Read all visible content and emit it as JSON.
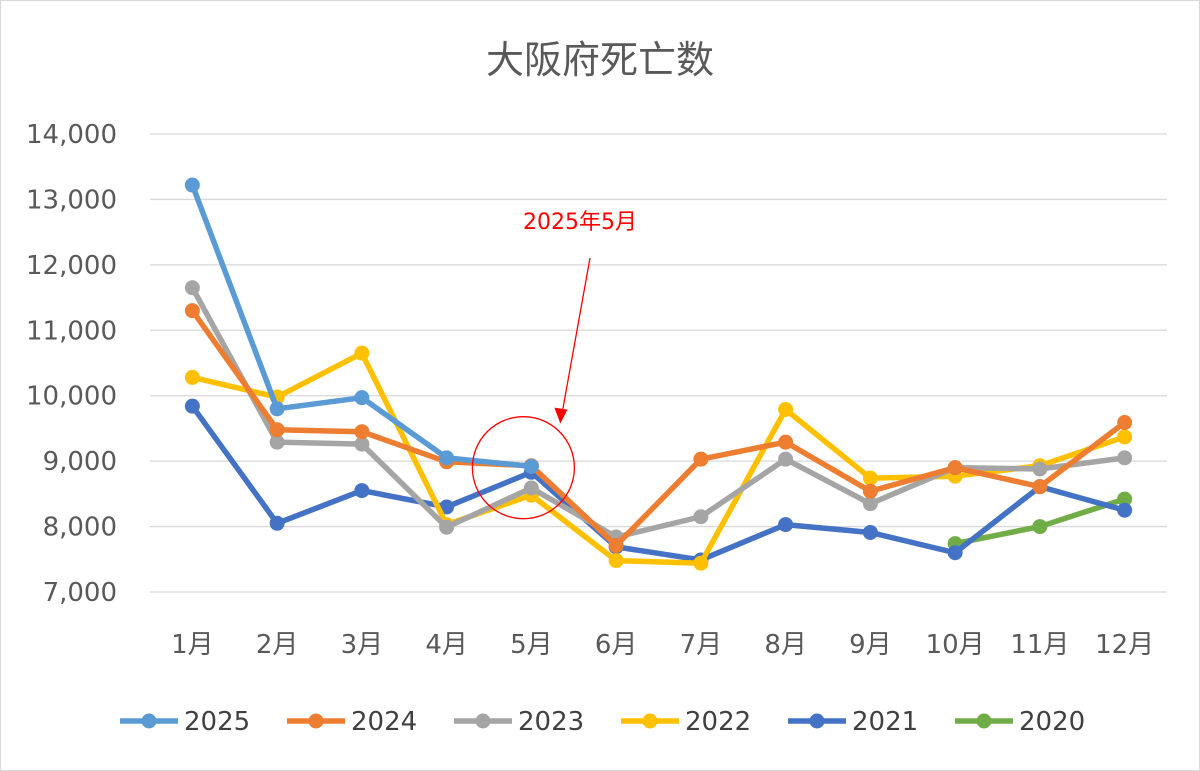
{
  "chart_data": {
    "type": "line",
    "title": "大阪府死亡数",
    "xlabel": "",
    "ylabel": "",
    "categories": [
      "1月",
      "2月",
      "3月",
      "4月",
      "5月",
      "6月",
      "7月",
      "8月",
      "9月",
      "10月",
      "11月",
      "12月"
    ],
    "ylim": [
      7000,
      14000
    ],
    "yticks": [
      7000,
      8000,
      9000,
      10000,
      11000,
      12000,
      13000,
      14000
    ],
    "ytick_labels": [
      "7,000",
      "8,000",
      "9,000",
      "10,000",
      "11,000",
      "12,000",
      "13,000",
      "14,000"
    ],
    "grid": "horizontal",
    "legend_position": "bottom",
    "series": [
      {
        "name": "2025",
        "color": "#5b9bd5",
        "values": [
          13220,
          9800,
          9970,
          9050,
          8920,
          null,
          null,
          null,
          null,
          null,
          null,
          null
        ]
      },
      {
        "name": "2024",
        "color": "#ed7d31",
        "values": [
          11300,
          9480,
          9450,
          8990,
          8930,
          7710,
          9030,
          9290,
          8540,
          8900,
          8610,
          9590
        ]
      },
      {
        "name": "2023",
        "color": "#a5a5a5",
        "values": [
          11650,
          9290,
          9260,
          7990,
          8590,
          7840,
          8150,
          9030,
          8350,
          8900,
          8880,
          9050
        ]
      },
      {
        "name": "2022",
        "color": "#ffc000",
        "values": [
          10280,
          9980,
          10650,
          8030,
          8480,
          7480,
          7440,
          9790,
          8740,
          8770,
          8930,
          9370
        ]
      },
      {
        "name": "2021",
        "color": "#4472c4",
        "values": [
          9840,
          8050,
          8550,
          8300,
          8830,
          7690,
          7490,
          8030,
          7910,
          7600,
          8610,
          8250
        ]
      },
      {
        "name": "2020",
        "color": "#70ad47",
        "values": [
          null,
          null,
          null,
          null,
          null,
          null,
          null,
          null,
          null,
          7740,
          8000,
          8420
        ]
      }
    ],
    "annotation": {
      "text": "2025年5月",
      "target_category": "5月",
      "target_value": 8900,
      "color": "#ff0000"
    }
  }
}
